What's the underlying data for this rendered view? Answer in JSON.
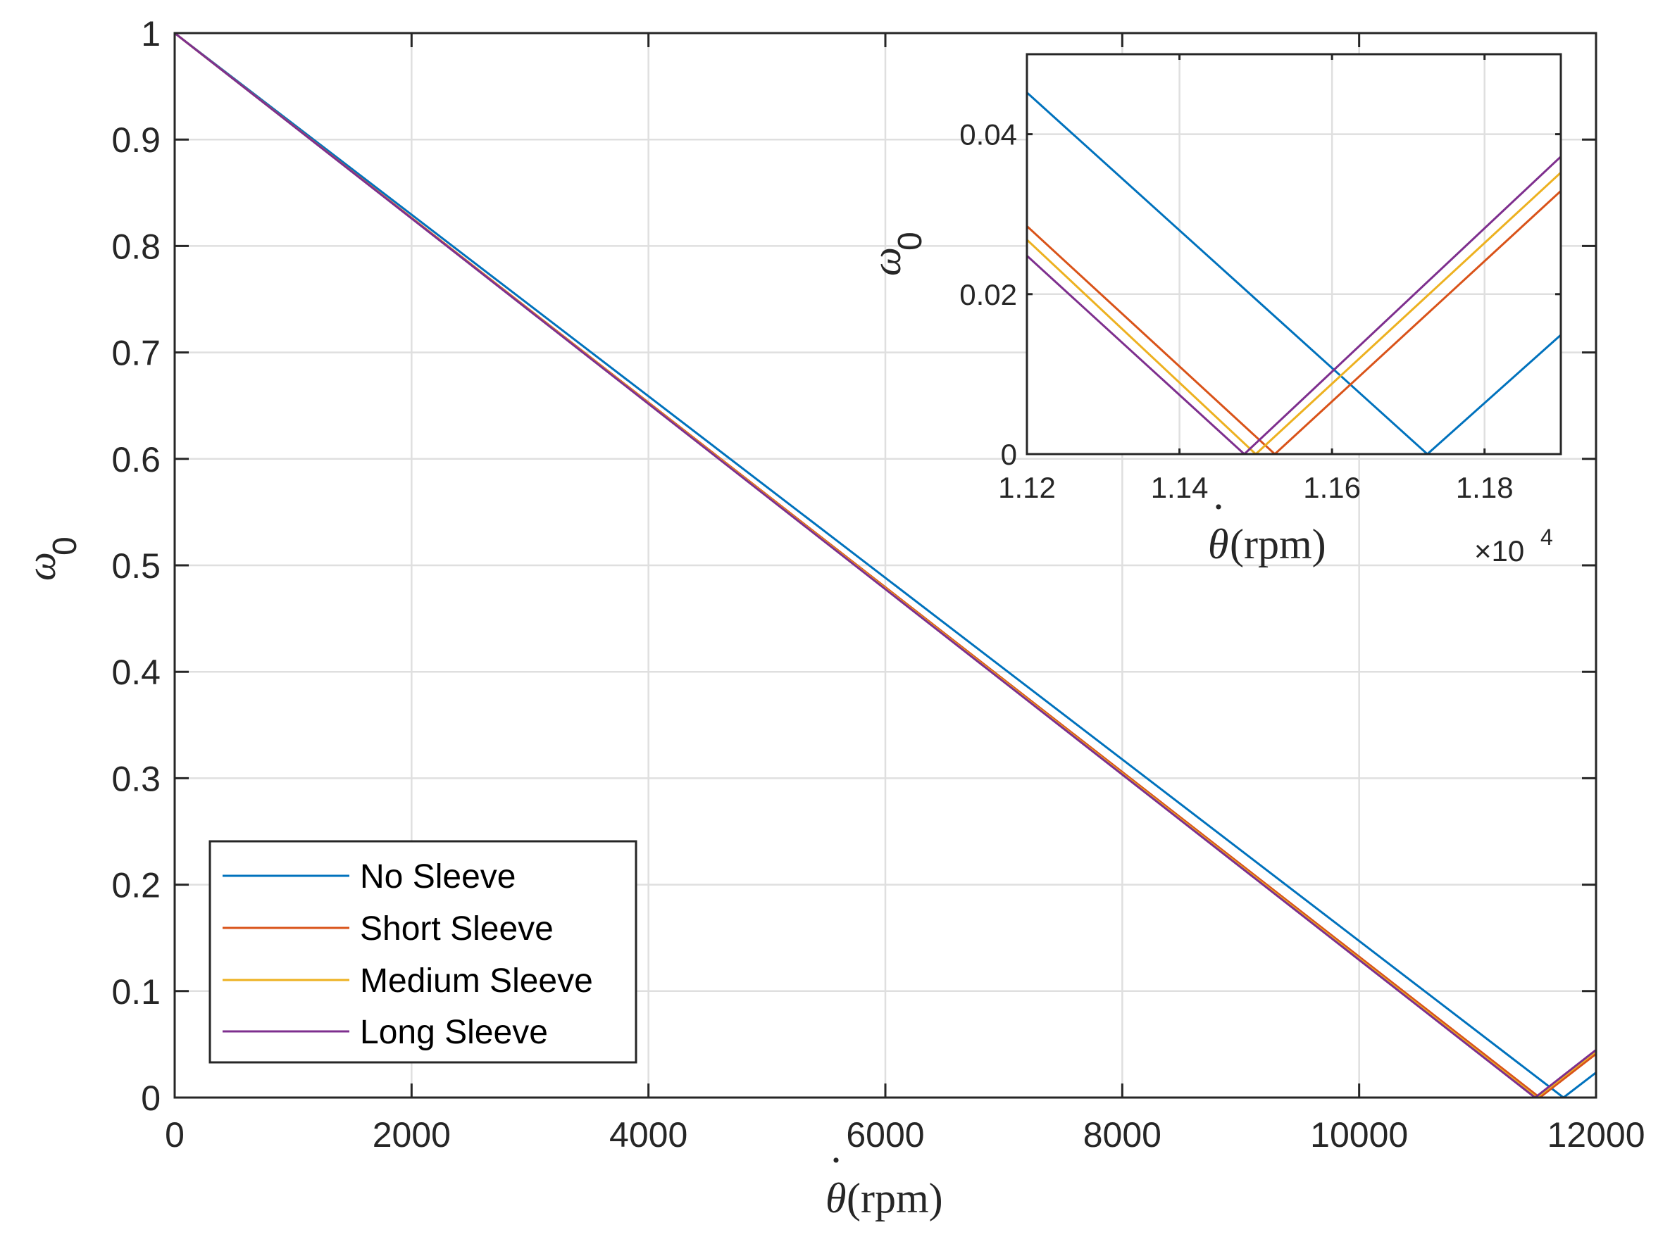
{
  "chart_data": [
    {
      "type": "line",
      "name": "main",
      "xlabel": "θ̇ (rpm)",
      "xlabel_symbol": "θ",
      "xlabel_units": "(rpm)",
      "ylabel": "ω0",
      "ylabel_symbol": "ω",
      "ylabel_subscript": "0",
      "xlim": [
        0,
        12000
      ],
      "ylim": [
        0,
        1
      ],
      "xticks": [
        0,
        2000,
        4000,
        6000,
        8000,
        10000,
        12000
      ],
      "xtick_labels": [
        "0",
        "2000",
        "4000",
        "6000",
        "8000",
        "10000",
        "12000"
      ],
      "yticks": [
        0,
        0.1,
        0.2,
        0.3,
        0.4,
        0.5,
        0.6,
        0.7,
        0.8,
        0.9,
        1
      ],
      "ytick_labels": [
        "0",
        "0.1",
        "0.2",
        "0.3",
        "0.4",
        "0.5",
        "0.6",
        "0.7",
        "0.8",
        "0.9",
        "1"
      ],
      "grid": true,
      "legend_position": "bottom-left",
      "series": [
        {
          "name": "No Sleeve",
          "color": "#0072BD",
          "x": [
            0,
            11725,
            12000
          ],
          "y": [
            1,
            0,
            0.0235
          ]
        },
        {
          "name": "Short Sleeve",
          "color": "#D95319",
          "x": [
            0,
            11525,
            12000
          ],
          "y": [
            1,
            0,
            0.041
          ]
        },
        {
          "name": "Medium Sleeve",
          "color": "#EDB120",
          "x": [
            0,
            11500,
            12000
          ],
          "y": [
            1,
            0,
            0.0435
          ]
        },
        {
          "name": "Long Sleeve",
          "color": "#7E2F8E",
          "x": [
            0,
            11485,
            12000
          ],
          "y": [
            1,
            0,
            0.0448
          ]
        }
      ]
    },
    {
      "type": "line",
      "name": "inset",
      "xlabel": "θ̇ (rpm)",
      "xlabel_symbol": "θ",
      "xlabel_units": "(rpm)",
      "ylabel": "ω0",
      "ylabel_symbol": "ω",
      "ylabel_subscript": "0",
      "x_exponent_base": "×10",
      "x_exponent_power": "4",
      "xlim": [
        11200,
        11900
      ],
      "ylim": [
        0,
        0.05
      ],
      "xticks": [
        11200,
        11400,
        11600,
        11800
      ],
      "xtick_labels": [
        "1.12",
        "1.14",
        "1.16",
        "1.18"
      ],
      "yticks": [
        0,
        0.02,
        0.04
      ],
      "ytick_labels": [
        "0",
        "0.02",
        "0.04"
      ],
      "grid": true,
      "series": [
        {
          "name": "No Sleeve",
          "color": "#0072BD",
          "x": [
            11200,
            11725,
            11900
          ],
          "y": [
            0.0452,
            0,
            0.0149
          ]
        },
        {
          "name": "Short Sleeve",
          "color": "#D95319",
          "x": [
            11200,
            11525,
            11900
          ],
          "y": [
            0.0285,
            0,
            0.0329
          ]
        },
        {
          "name": "Medium Sleeve",
          "color": "#EDB120",
          "x": [
            11200,
            11500,
            11900
          ],
          "y": [
            0.0268,
            0,
            0.0352
          ]
        },
        {
          "name": "Long Sleeve",
          "color": "#7E2F8E",
          "x": [
            11200,
            11485,
            11900
          ],
          "y": [
            0.0248,
            0,
            0.0372
          ]
        }
      ]
    }
  ]
}
